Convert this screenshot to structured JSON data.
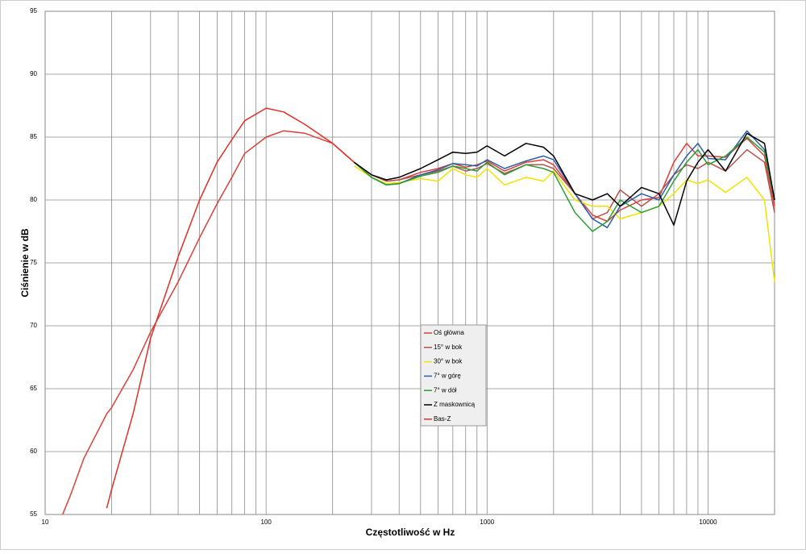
{
  "chart_data": {
    "type": "line",
    "xlabel": "Częstotliwość w Hz",
    "ylabel": "Ciśnienie w dB",
    "log_x": true,
    "grid": true,
    "minor_grid": true,
    "legend": "center",
    "xlim": [
      10,
      20000
    ],
    "ylim": [
      55,
      95
    ],
    "xticks": [
      10,
      100,
      1000,
      10000
    ],
    "yticks": [
      55,
      60,
      65,
      70,
      75,
      80,
      85,
      90,
      95
    ],
    "x": [
      12,
      13,
      15,
      19,
      20,
      25,
      30,
      40,
      50,
      60,
      70,
      80,
      100,
      120,
      150,
      200,
      250,
      300,
      350,
      400,
      500,
      600,
      700,
      800,
      900,
      1000,
      1200,
      1500,
      1800,
      2000,
      2500,
      3000,
      3500,
      4000,
      5000,
      6000,
      7000,
      8000,
      9000,
      10000,
      12000,
      15000,
      18000,
      20000
    ],
    "series": [
      {
        "name": "Oś główna",
        "color": "#d9403a",
        "values": [
          55,
          56.5,
          59.5,
          63,
          63.5,
          66.5,
          69.5,
          73.5,
          77,
          79.7,
          81.8,
          83.7,
          85,
          85.5,
          85.3,
          84.5,
          83,
          82,
          81.5,
          81.6,
          82.2,
          82.5,
          82.9,
          82.6,
          82.8,
          83.1,
          82.3,
          83,
          83.2,
          82.8,
          80.5,
          78.8,
          78.3,
          79.2,
          80,
          80.2,
          83,
          84.5,
          83.5,
          83.5,
          83.4,
          84.9,
          83.5,
          79.5
        ]
      },
      {
        "name": "15° w bok",
        "color": "#b5524e",
        "values": [
          null,
          null,
          null,
          null,
          null,
          null,
          null,
          null,
          null,
          null,
          null,
          null,
          null,
          null,
          null,
          null,
          83,
          82,
          81.5,
          81.6,
          82,
          82.3,
          82.7,
          82.3,
          82.5,
          82.9,
          82.1,
          82.8,
          82.8,
          82.5,
          80.5,
          78.5,
          79,
          80.8,
          79.5,
          80.5,
          82,
          82.8,
          82.5,
          83,
          82.3,
          84,
          83,
          79
        ]
      },
      {
        "name": "30° w bok",
        "color": "#f2e200",
        "values": [
          null,
          null,
          null,
          null,
          null,
          null,
          null,
          null,
          null,
          null,
          null,
          null,
          null,
          null,
          null,
          null,
          82.7,
          81.8,
          81.3,
          81.4,
          81.7,
          81.5,
          82.5,
          82,
          81.8,
          82.5,
          81.2,
          81.8,
          81.5,
          82.3,
          80,
          79.5,
          79.5,
          78.5,
          79,
          79.5,
          80.5,
          81.6,
          81.3,
          81.6,
          80.6,
          81.8,
          80,
          73.5
        ]
      },
      {
        "name": "7° w górę",
        "color": "#2f5ea8",
        "values": [
          null,
          null,
          null,
          null,
          null,
          null,
          null,
          null,
          null,
          null,
          null,
          null,
          null,
          null,
          null,
          null,
          83,
          81.8,
          81.2,
          81.3,
          82,
          82.4,
          82.9,
          82.8,
          82.7,
          83.2,
          82.5,
          83.1,
          83.5,
          83.2,
          80.5,
          78.5,
          77.8,
          79.5,
          80.5,
          80,
          82,
          83.5,
          84.5,
          83.3,
          83.2,
          85.5,
          84,
          80
        ]
      },
      {
        "name": "7° w dół",
        "color": "#2a9e35",
        "values": [
          null,
          null,
          null,
          null,
          null,
          null,
          null,
          null,
          null,
          null,
          null,
          null,
          null,
          null,
          null,
          null,
          83,
          81.8,
          81.2,
          81.3,
          81.9,
          82.2,
          82.7,
          82.5,
          82.3,
          83,
          82,
          82.8,
          82.5,
          82.2,
          79,
          77.5,
          78.3,
          80,
          79,
          79.5,
          81.5,
          83,
          84,
          82.8,
          83.5,
          85,
          83.8,
          80
        ]
      },
      {
        "name": "Z maskownicą",
        "color": "#000000",
        "values": [
          null,
          null,
          null,
          null,
          null,
          null,
          null,
          null,
          null,
          null,
          null,
          null,
          null,
          null,
          null,
          null,
          83,
          82,
          81.6,
          81.8,
          82.5,
          83.2,
          83.8,
          83.7,
          83.8,
          84.3,
          83.5,
          84.5,
          84.2,
          83.5,
          80.5,
          80,
          80.5,
          79.5,
          81,
          80.5,
          78,
          81.5,
          83,
          84,
          82.3,
          85.3,
          84.5,
          80
        ]
      },
      {
        "name": "Bas-Z",
        "color": "#e0302a",
        "values": [
          null,
          null,
          null,
          55.5,
          57,
          63,
          69,
          75.5,
          80,
          83,
          84.8,
          86.3,
          87.3,
          87,
          86,
          84.5,
          83,
          null,
          null,
          null,
          null,
          null,
          null,
          null,
          null,
          null,
          null,
          null,
          null,
          null,
          null,
          null,
          null,
          null,
          null,
          null,
          null,
          null,
          null,
          null,
          null,
          null,
          null,
          null
        ]
      }
    ]
  }
}
